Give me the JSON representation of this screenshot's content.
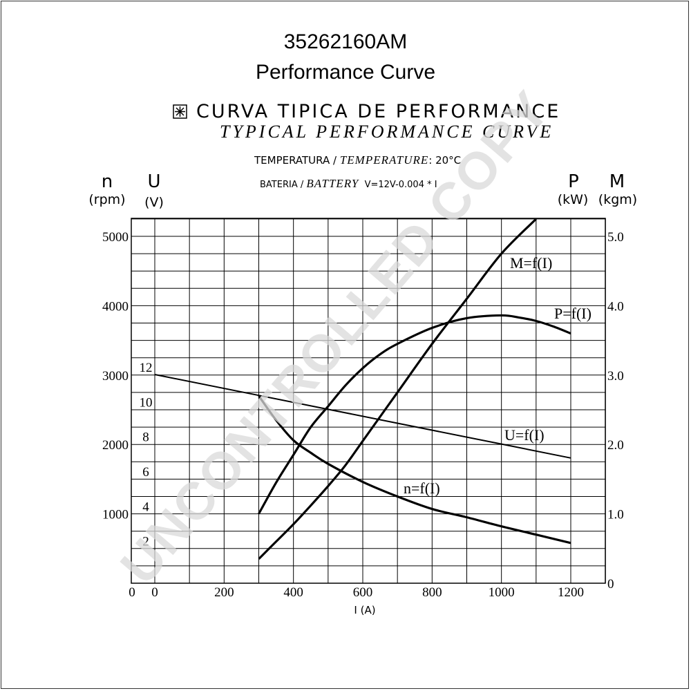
{
  "header": {
    "part_number": "35262160AM",
    "subtitle": "Performance Curve",
    "spanish_title": "CURVA TIPICA DE PERFORMANCE",
    "english_title": "TYPICAL PERFORMANCE CURVE",
    "temp_label_es": "TEMPERATURA /",
    "temp_label_en": "TEMPERATURE",
    "temp_value": ": 20°C",
    "battery_label_es": "BATERIA /",
    "battery_label_en": "BATTERY",
    "battery_formula": "V=12V-0.004 * I"
  },
  "axes": {
    "n_symbol": "n",
    "n_unit": "(rpm)",
    "u_symbol": "U",
    "u_unit": "(V)",
    "p_symbol": "P",
    "p_unit": "(kW)",
    "m_symbol": "M",
    "m_unit": "(kgm)",
    "x_label": "I (A)"
  },
  "watermark": "UNCONTROLLED COPY",
  "colors": {
    "line": "#000000",
    "grid": "#000000",
    "watermark": "#d9d9d9"
  },
  "chart_data": {
    "type": "line",
    "x_label": "I (A)",
    "x_range": [
      0,
      1300
    ],
    "x_ticks": [
      0,
      200,
      400,
      600,
      800,
      1000,
      1200
    ],
    "left_axis_rpm": {
      "label": "n (rpm)",
      "ticks": [
        0,
        1000,
        2000,
        3000,
        4000,
        5000
      ],
      "range": [
        0,
        5000
      ]
    },
    "left_axis_volt": {
      "label": "U (V)",
      "ticks": [
        2,
        4,
        6,
        8,
        10,
        12
      ],
      "range": [
        0,
        16.67
      ]
    },
    "right_axis": {
      "label": "P (kW) / M (kgm)",
      "ticks": [
        0,
        1.0,
        2.0,
        3.0,
        4.0,
        5.0
      ],
      "tick_labels": [
        "0",
        "1.0",
        "2.0",
        "3.0",
        "4.0",
        "5.0"
      ],
      "range": [
        0,
        5.0
      ]
    },
    "grid": true,
    "series": [
      {
        "name": "U=f(I)",
        "axis": "volt",
        "x": [
          0,
          300,
          500,
          1000,
          1200
        ],
        "y": [
          12.0,
          10.8,
          10.0,
          8.0,
          7.2
        ]
      },
      {
        "name": "n=f(I)",
        "axis": "rpm",
        "x": [
          300,
          350,
          400,
          450,
          500,
          600,
          700,
          800,
          900,
          1000,
          1100,
          1200
        ],
        "y": [
          2700,
          2350,
          2060,
          1880,
          1720,
          1460,
          1250,
          1070,
          950,
          820,
          700,
          580
        ]
      },
      {
        "name": "P=f(I)",
        "axis": "right",
        "x": [
          300,
          350,
          400,
          450,
          500,
          550,
          600,
          650,
          700,
          800,
          900,
          1000,
          1050,
          1100,
          1150,
          1200
        ],
        "y": [
          1.0,
          1.45,
          1.85,
          2.25,
          2.55,
          2.85,
          3.1,
          3.3,
          3.45,
          3.68,
          3.82,
          3.86,
          3.83,
          3.78,
          3.7,
          3.6
        ]
      },
      {
        "name": "M=f(I)",
        "axis": "right",
        "x": [
          300,
          350,
          400,
          450,
          500,
          550,
          600,
          700,
          800,
          900,
          1000,
          1100
        ],
        "y": [
          0.35,
          0.6,
          0.85,
          1.12,
          1.4,
          1.7,
          2.05,
          2.75,
          3.45,
          4.1,
          4.75,
          5.25
        ]
      }
    ],
    "series_labels": [
      "M=f(I)",
      "P=f(I)",
      "U=f(I)",
      "n=f(I)"
    ]
  }
}
